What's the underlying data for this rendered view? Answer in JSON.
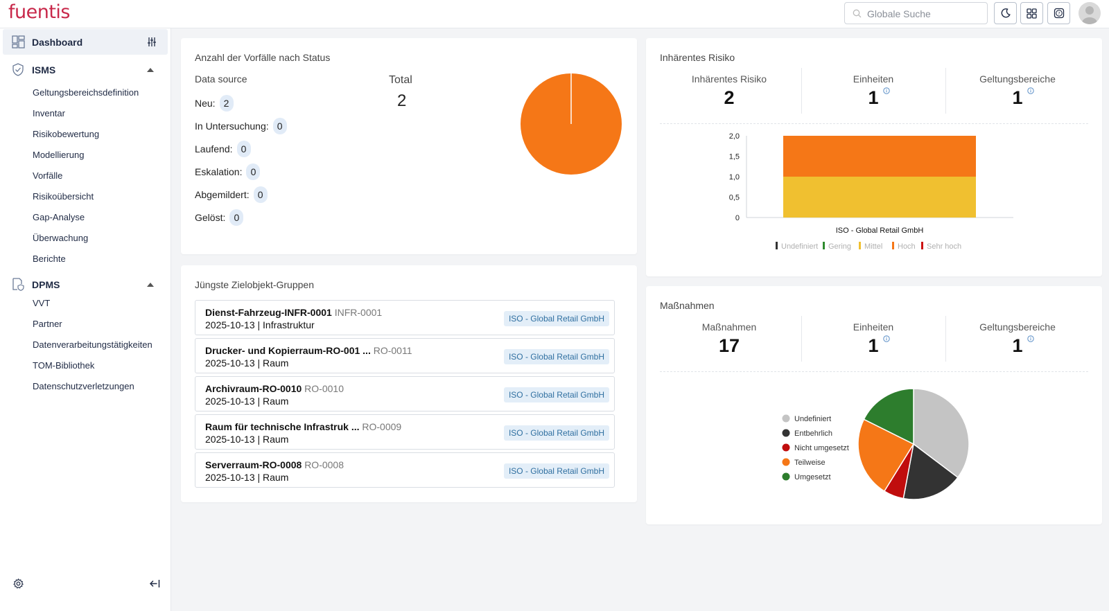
{
  "app": {
    "logo": "fuentis"
  },
  "topbar": {
    "search_placeholder": "Globale Suche"
  },
  "sidebar": {
    "dashboard": "Dashboard",
    "isms": {
      "label": "ISMS",
      "items": [
        "Geltungsbereichsdefinition",
        "Inventar",
        "Risikobewertung",
        "Modellierung",
        "Vorfälle",
        "Risikoübersicht",
        "Gap-Analyse",
        "Überwachung",
        "Berichte"
      ]
    },
    "dpms": {
      "label": "DPMS",
      "items": [
        "VVT",
        "Partner",
        "Datenverarbeitungstätigkeiten",
        "TOM-Bibliothek",
        "Datenschutzverletzungen"
      ]
    }
  },
  "incidents": {
    "title": "Anzahl der Vorfälle nach Status",
    "data_source": "Data source",
    "total_label": "Total",
    "total": "2",
    "rows": [
      {
        "label": "Neu:",
        "count": "2"
      },
      {
        "label": "In Untersuchung:",
        "count": "0"
      },
      {
        "label": "Laufend:",
        "count": "0"
      },
      {
        "label": "Eskalation:",
        "count": "0"
      },
      {
        "label": "Abgemildert:",
        "count": "0"
      },
      {
        "label": "Gelöst:",
        "count": "0"
      }
    ],
    "color": "#f57717"
  },
  "targets": {
    "title": "Jüngste Zielobjekt-Gruppen",
    "items": [
      {
        "name": "Dienst-Fahrzeug-INFR-0001",
        "id": "INFR-0001",
        "date": "2025-10-13 | Infrastruktur",
        "tag": "ISO - Global Retail GmbH"
      },
      {
        "name": "Drucker- und Kopierraum-RO-001 ...",
        "id": "RO-0011",
        "date": "2025-10-13 | Raum",
        "tag": "ISO - Global Retail GmbH"
      },
      {
        "name": "Archivraum-RO-0010",
        "id": "RO-0010",
        "date": "2025-10-13 | Raum",
        "tag": "ISO - Global Retail GmbH"
      },
      {
        "name": "Raum für technische Infrastruk ...",
        "id": "RO-0009",
        "date": "2025-10-13 | Raum",
        "tag": "ISO - Global Retail GmbH"
      },
      {
        "name": "Serverraum-RO-0008",
        "id": "RO-0008",
        "date": "2025-10-13 | Raum",
        "tag": "ISO - Global Retail GmbH"
      }
    ]
  },
  "risk": {
    "title": "Inhärentes Risiko",
    "kpis": [
      {
        "label": "Inhärentes Risiko",
        "value": "2"
      },
      {
        "label": "Einheiten",
        "value": "1"
      },
      {
        "label": "Geltungsbereiche",
        "value": "1"
      }
    ]
  },
  "measures": {
    "title": "Maßnahmen",
    "kpis": [
      {
        "label": "Maßnahmen",
        "value": "17"
      },
      {
        "label": "Einheiten",
        "value": "1"
      },
      {
        "label": "Geltungsbereiche",
        "value": "1"
      }
    ]
  },
  "chart_data": [
    {
      "type": "pie",
      "categories": [
        "Neu",
        "In Untersuchung",
        "Laufend",
        "Eskalation",
        "Abgemildert",
        "Gelöst"
      ],
      "values": [
        2,
        0,
        0,
        0,
        0,
        0
      ],
      "colors": [
        "#f57717"
      ]
    },
    {
      "type": "bar",
      "stacked": true,
      "categories": [
        "ISO - Global Retail GmbH"
      ],
      "series": [
        {
          "name": "Undefiniert",
          "values": [
            0
          ],
          "color": "#333333"
        },
        {
          "name": "Gering",
          "values": [
            0
          ],
          "color": "#2e8b2e"
        },
        {
          "name": "Mittel",
          "values": [
            1
          ],
          "color": "#f0c030"
        },
        {
          "name": "Hoch",
          "values": [
            1
          ],
          "color": "#f57717"
        },
        {
          "name": "Sehr hoch",
          "values": [
            0
          ],
          "color": "#cc1111"
        }
      ],
      "ylim": [
        0,
        2
      ],
      "yticks": [
        "0",
        "0,5",
        "1,0",
        "1,5",
        "2,0"
      ],
      "legend": "bottom"
    },
    {
      "type": "pie",
      "categories": [
        "Undefiniert",
        "Entbehrlich",
        "Nicht umgesetzt",
        "Teilweise",
        "Umgesetzt"
      ],
      "values": [
        6,
        3,
        1,
        4,
        3
      ],
      "colors": [
        "#c4c4c4",
        "#333333",
        "#c00d0d",
        "#f57717",
        "#2d7d2d"
      ],
      "legend": "left"
    }
  ]
}
